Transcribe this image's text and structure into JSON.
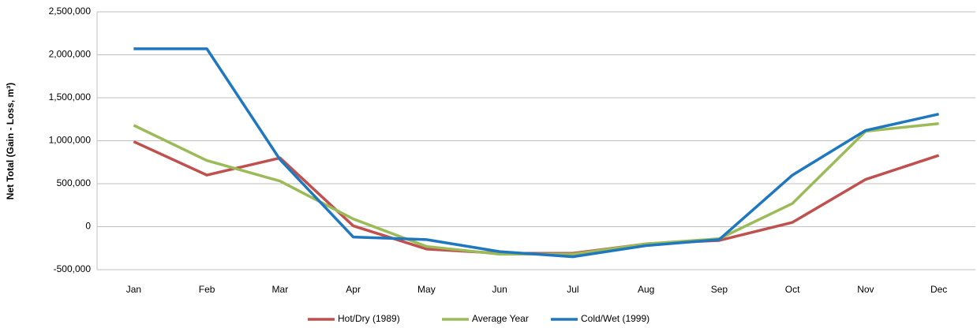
{
  "chart_data": {
    "type": "line",
    "y_label": "Net Total (Gain - Loss, m³)",
    "categories": [
      "Jan",
      "Feb",
      "Mar",
      "Apr",
      "May",
      "Jun",
      "Jul",
      "Aug",
      "Sep",
      "Oct",
      "Nov",
      "Dec"
    ],
    "series": [
      {
        "name": "Hot/Dry (1989)",
        "color": "#c0504d",
        "values": [
          990000,
          600000,
          800000,
          10000,
          -260000,
          -310000,
          -310000,
          -200000,
          -160000,
          50000,
          550000,
          830000
        ]
      },
      {
        "name": "Average Year",
        "color": "#9bbb59",
        "values": [
          1180000,
          770000,
          530000,
          90000,
          -230000,
          -320000,
          -320000,
          -200000,
          -140000,
          270000,
          1110000,
          1200000
        ]
      },
      {
        "name": "Cold/Wet (1999)",
        "color": "#1f77c0",
        "values": [
          2070000,
          2070000,
          780000,
          -120000,
          -150000,
          -290000,
          -350000,
          -220000,
          -150000,
          600000,
          1120000,
          1310000
        ]
      }
    ],
    "ylim": [
      -500000,
      2500000
    ],
    "yticks": [
      {
        "value": -500000,
        "label": "-500,000"
      },
      0,
      {
        "value": 500000,
        "label": "500,000"
      },
      {
        "value": 1000000,
        "label": "1,000,000"
      },
      {
        "value": 1500000,
        "label": "1,500,000"
      },
      {
        "value": 2000000,
        "label": "2,000,000"
      },
      {
        "value": 2500000,
        "label": "2,500,000"
      }
    ],
    "grid": true,
    "legend": "bottom"
  }
}
